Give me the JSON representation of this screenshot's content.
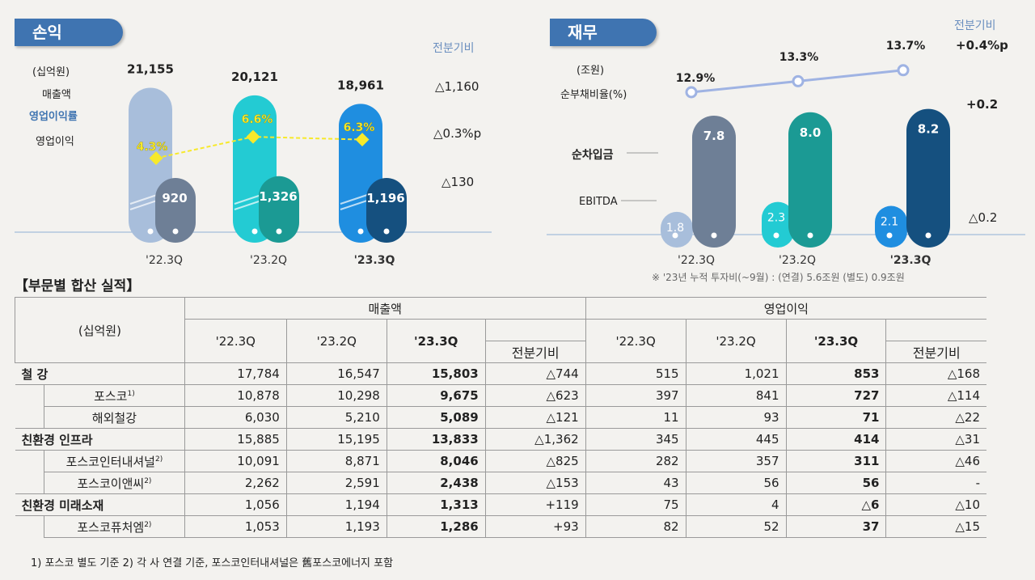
{
  "pl": {
    "tag": "손익",
    "unit": "(십억원)",
    "row_labels": [
      "매출액",
      "영업이익률",
      "영업이익"
    ],
    "change_header": "전분기비",
    "changes": [
      "△1,160",
      "△0.3%p",
      "△130"
    ]
  },
  "fin": {
    "tag": "재무",
    "unit": "(조원)",
    "ratio_label": "순부채비율(%)",
    "net_borrow_label": "순차입금",
    "ebitda_label": "EBITDA",
    "change_header": "전분기비",
    "changes": [
      "+0.4%p",
      "+0.2",
      "△0.2"
    ],
    "note": "※ '23년 누적 투자비(~9월) : (연결) 5.6조원 (별도) 0.9조원"
  },
  "chart_data": [
    {
      "type": "bar",
      "categories": [
        "'22.3Q",
        "'23.2Q",
        "'23.3Q"
      ],
      "series": [
        {
          "name": "매출액",
          "values": [
            21155,
            20121,
            18961
          ],
          "labels": [
            "21,155",
            "20,121",
            "18,961"
          ]
        },
        {
          "name": "영업이익",
          "values": [
            920,
            1326,
            1196
          ],
          "labels": [
            "920",
            "1,326",
            "1,196"
          ]
        },
        {
          "name": "영업이익률",
          "values": [
            4.3,
            6.6,
            6.3
          ],
          "labels": [
            "4.3%",
            "6.6%",
            "6.3%"
          ]
        }
      ],
      "colors": {
        "sales": [
          "#a8bedb",
          "#23cbd3",
          "#1f8ee0"
        ],
        "op": [
          "#6e7f96",
          "#1b9a94",
          "#15507f"
        ],
        "margin_line": "#f7e92a"
      }
    },
    {
      "type": "bar",
      "categories": [
        "'22.3Q",
        "'23.2Q",
        "'23.3Q"
      ],
      "series": [
        {
          "name": "EBITDA",
          "values": [
            1.8,
            2.3,
            2.1
          ],
          "labels": [
            "1.8",
            "2.3",
            "2.1"
          ]
        },
        {
          "name": "순차입금",
          "values": [
            7.8,
            8.0,
            8.2
          ],
          "labels": [
            "7.8",
            "8.0",
            "8.2"
          ]
        },
        {
          "name": "순부채비율(%)",
          "values": [
            12.9,
            13.3,
            13.7
          ],
          "labels": [
            "12.9%",
            "13.3%",
            "13.7%"
          ]
        }
      ],
      "colors": {
        "ebitda": [
          "#a8bedb",
          "#23cbd3",
          "#1f8ee0"
        ],
        "debt": [
          "#6e7f96",
          "#1b9a94",
          "#15507f"
        ],
        "ratio_line": "#9fb3e3"
      }
    }
  ],
  "segment": {
    "title": "【부문별 합산 실적】",
    "unit": "(십억원)",
    "group_sales": "매출액",
    "group_op": "영업이익",
    "periods": [
      "'22.3Q",
      "'23.2Q",
      "'23.3Q"
    ],
    "change_header": "전분기비",
    "rows": [
      {
        "label": "철 강",
        "cat": true,
        "sup": "",
        "values": [
          "17,784",
          "16,547",
          "15,803",
          "△744",
          "515",
          "1,021",
          "853",
          "△168"
        ]
      },
      {
        "label": "포스코",
        "cat": false,
        "sup": "1)",
        "values": [
          "10,878",
          "10,298",
          "9,675",
          "△623",
          "397",
          "841",
          "727",
          "△114"
        ]
      },
      {
        "label": "해외철강",
        "cat": false,
        "sup": "",
        "values": [
          "6,030",
          "5,210",
          "5,089",
          "△121",
          "11",
          "93",
          "71",
          "△22"
        ]
      },
      {
        "label": "친환경 인프라",
        "cat": true,
        "sup": "",
        "values": [
          "15,885",
          "15,195",
          "13,833",
          "△1,362",
          "345",
          "445",
          "414",
          "△31"
        ]
      },
      {
        "label": "포스코인터내셔널",
        "cat": false,
        "sup": "2)",
        "values": [
          "10,091",
          "8,871",
          "8,046",
          "△825",
          "282",
          "357",
          "311",
          "△46"
        ]
      },
      {
        "label": "포스코이앤씨",
        "cat": false,
        "sup": "2)",
        "values": [
          "2,262",
          "2,591",
          "2,438",
          "△153",
          "43",
          "56",
          "56",
          "-"
        ]
      },
      {
        "label": "친환경 미래소재",
        "cat": true,
        "sup": "",
        "values": [
          "1,056",
          "1,194",
          "1,313",
          "+119",
          "75",
          "4",
          "△6",
          "△10"
        ]
      },
      {
        "label": "포스코퓨처엠",
        "cat": false,
        "sup": "2)",
        "values": [
          "1,053",
          "1,193",
          "1,286",
          "+93",
          "82",
          "52",
          "37",
          "△15"
        ]
      }
    ],
    "footnote": "1) 포스코 별도 기준   2) 각 사 연결 기준, 포스코인터내셔널은 舊포스코에너지 포함"
  }
}
